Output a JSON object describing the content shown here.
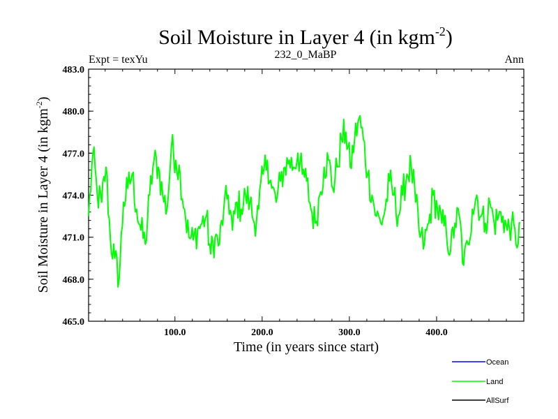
{
  "chart_data": {
    "type": "line",
    "title_main": "Soil Moisture in Layer 4 (in kgm",
    "title_sup": "-2",
    "title_close": ")",
    "subtitle_left": "Expt = texYu",
    "subtitle_center": "232_0_MaBP",
    "subtitle_right": "Ann",
    "xlabel": "Time (in years since start)",
    "ylabel_main": "Soil Moisture in Layer 4 (in kgm",
    "ylabel_sup": "-2",
    "ylabel_close": ")",
    "xlim": [
      1,
      500
    ],
    "ylim": [
      465.0,
      483.0
    ],
    "xticks": [
      100,
      200,
      300,
      400
    ],
    "xtick_labels": [
      "100.0",
      "200.0",
      "300.0",
      "400.0"
    ],
    "yticks": [
      465,
      468,
      471,
      474,
      477,
      480,
      483
    ],
    "ytick_labels": [
      "465.0",
      "468.0",
      "471.0",
      "474.0",
      "477.0",
      "480.0",
      "483.0"
    ],
    "grid": false,
    "legend_position": "bottom-right",
    "legend": [
      {
        "name": "Ocean",
        "color": "#0000ff"
      },
      {
        "name": "Land",
        "color": "#00ff00"
      },
      {
        "name": "AllSurf",
        "color": "#000000"
      }
    ],
    "series": [
      {
        "name": "Land",
        "color": "#00ff00",
        "x_start": 1,
        "x_step": 5,
        "values": [
          472.5,
          477.0,
          474.0,
          473.5,
          476.0,
          470.8,
          469.5,
          468.0,
          473.5,
          474.5,
          475.5,
          473.0,
          471.5,
          470.5,
          474.0,
          476.5,
          476.0,
          474.0,
          473.0,
          477.5,
          476.5,
          475.5,
          473.0,
          471.0,
          470.8,
          471.5,
          472.0,
          472.5,
          469.8,
          471.0,
          470.5,
          473.0,
          474.0,
          471.5,
          473.5,
          473.0,
          474.0,
          473.5,
          472.0,
          473.0,
          475.5,
          476.5,
          474.5,
          473.5,
          475.0,
          476.0,
          476.5,
          476.0,
          477.0,
          475.5,
          475.0,
          473.0,
          472.0,
          474.0,
          476.0,
          476.5,
          474.5,
          476.0,
          478.0,
          478.5,
          476.0,
          478.0,
          479.5,
          478.0,
          475.5,
          474.0,
          472.5,
          472.0,
          473.0,
          475.0,
          474.0,
          472.5,
          474.0,
          475.5,
          476.0,
          473.5,
          471.0,
          470.5,
          472.0,
          474.0,
          473.0,
          472.0,
          471.5,
          470.0,
          472.0,
          472.5,
          469.0,
          470.5,
          473.0,
          474.0,
          472.5,
          472.0,
          473.5,
          472.0,
          472.5,
          472.5,
          471.5,
          472.0,
          470.5,
          472.0
        ]
      }
    ]
  }
}
